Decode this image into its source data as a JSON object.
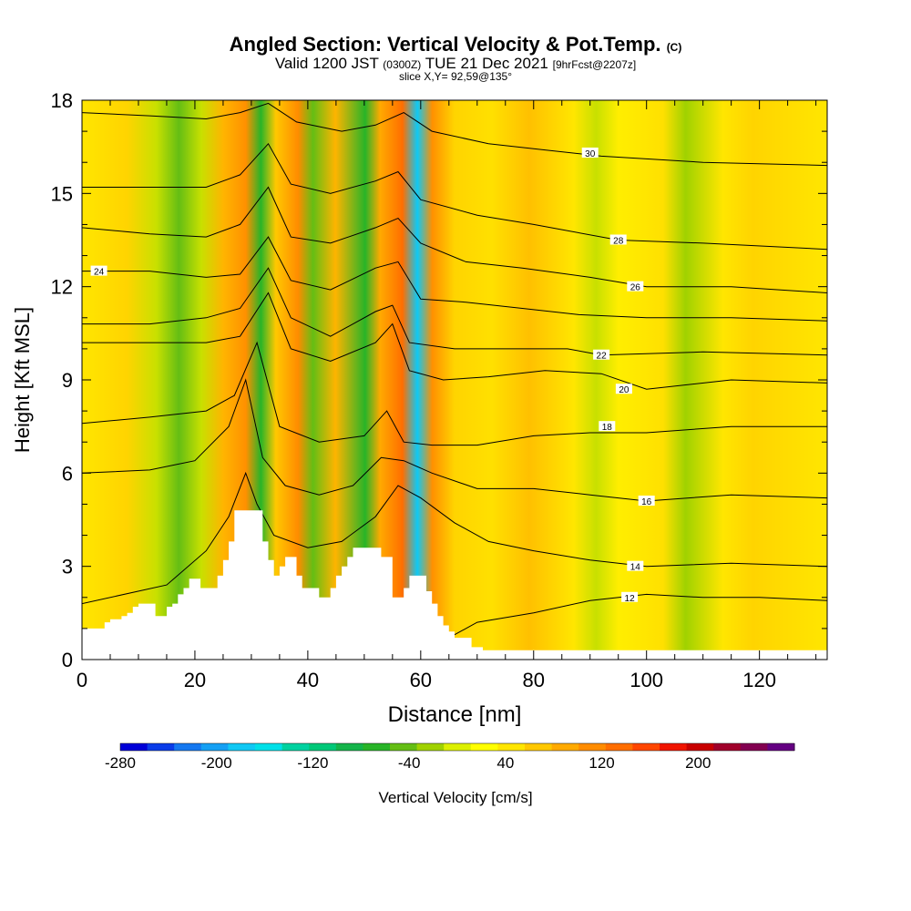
{
  "header": {
    "title": "Angled Section: Vertical Velocity & Pot.Temp.",
    "title_mark": "(C)",
    "valid_prefix": "Valid 1200 JST",
    "valid_z": "(0300Z)",
    "valid_date": "TUE 21 Dec 2021",
    "valid_fcst": "[9hrFcst@2207z]",
    "slice": "slice X,Y= 92,59@135°"
  },
  "colors": {
    "terrain": "#ffffff",
    "contour": "#000000",
    "background": "#ffffff"
  },
  "chart_data": {
    "type": "heatmap",
    "xlabel": "Distance [nm]",
    "ylabel": "Height [Kft MSL]",
    "xlim": [
      0,
      132
    ],
    "ylim": [
      0,
      18
    ],
    "xticks": [
      0,
      20,
      40,
      60,
      80,
      100,
      120
    ],
    "yticks": [
      0,
      3,
      6,
      9,
      12,
      15,
      18
    ],
    "colorbar": {
      "label": "Vertical Velocity [cm/s]",
      "min": -280,
      "max": 280,
      "ticks": [
        -280,
        -200,
        -120,
        -40,
        40,
        120,
        200
      ],
      "colors": [
        "#0000d8",
        "#0a3ce8",
        "#1478f0",
        "#14a0f4",
        "#10c8f4",
        "#00e0e8",
        "#00d2a0",
        "#00c878",
        "#14b44a",
        "#28b428",
        "#64be14",
        "#a0d200",
        "#dcf000",
        "#ffff00",
        "#ffe600",
        "#ffc800",
        "#ffaa00",
        "#ff8c00",
        "#ff6e00",
        "#ff4600",
        "#f01400",
        "#c80000",
        "#a0002a",
        "#820050",
        "#640082"
      ]
    },
    "terrain": [
      [
        0,
        1.0
      ],
      [
        4,
        1.0
      ],
      [
        4,
        1.2
      ],
      [
        5,
        1.2
      ],
      [
        5,
        1.3
      ],
      [
        7,
        1.3
      ],
      [
        7,
        1.4
      ],
      [
        8,
        1.4
      ],
      [
        8,
        1.5
      ],
      [
        9,
        1.5
      ],
      [
        9,
        1.7
      ],
      [
        10,
        1.7
      ],
      [
        10,
        1.8
      ],
      [
        13,
        1.8
      ],
      [
        13,
        1.4
      ],
      [
        15,
        1.4
      ],
      [
        15,
        1.7
      ],
      [
        16,
        1.7
      ],
      [
        16,
        1.8
      ],
      [
        17,
        1.8
      ],
      [
        17,
        2.1
      ],
      [
        18,
        2.1
      ],
      [
        18,
        2.3
      ],
      [
        19,
        2.3
      ],
      [
        19,
        2.6
      ],
      [
        21,
        2.6
      ],
      [
        21,
        2.3
      ],
      [
        24,
        2.3
      ],
      [
        24,
        2.7
      ],
      [
        25,
        2.7
      ],
      [
        25,
        3.2
      ],
      [
        26,
        3.2
      ],
      [
        26,
        3.8
      ],
      [
        27,
        3.8
      ],
      [
        27,
        4.8
      ],
      [
        32,
        4.8
      ],
      [
        32,
        3.8
      ],
      [
        33,
        3.8
      ],
      [
        33,
        3.2
      ],
      [
        34,
        3.2
      ],
      [
        34,
        2.7
      ],
      [
        35,
        2.7
      ],
      [
        35,
        3.0
      ],
      [
        36,
        3.0
      ],
      [
        36,
        3.3
      ],
      [
        38,
        3.3
      ],
      [
        38,
        2.7
      ],
      [
        39,
        2.7
      ],
      [
        39,
        2.3
      ],
      [
        42,
        2.3
      ],
      [
        42,
        2.0
      ],
      [
        44,
        2.0
      ],
      [
        44,
        2.3
      ],
      [
        45,
        2.3
      ],
      [
        45,
        2.7
      ],
      [
        46,
        2.7
      ],
      [
        46,
        3.0
      ],
      [
        47,
        3.0
      ],
      [
        47,
        3.3
      ],
      [
        48,
        3.3
      ],
      [
        48,
        3.6
      ],
      [
        53,
        3.6
      ],
      [
        53,
        3.3
      ],
      [
        55,
        3.3
      ],
      [
        55,
        2.0
      ],
      [
        57,
        2.0
      ],
      [
        57,
        2.3
      ],
      [
        58,
        2.3
      ],
      [
        58,
        2.7
      ],
      [
        61,
        2.7
      ],
      [
        61,
        2.2
      ],
      [
        62,
        2.2
      ],
      [
        62,
        1.8
      ],
      [
        63,
        1.8
      ],
      [
        63,
        1.4
      ],
      [
        64,
        1.4
      ],
      [
        64,
        1.1
      ],
      [
        65,
        1.1
      ],
      [
        65,
        0.9
      ],
      [
        66,
        0.9
      ],
      [
        66,
        0.7
      ],
      [
        69,
        0.7
      ],
      [
        69,
        0.4
      ],
      [
        71,
        0.4
      ],
      [
        71,
        0.3
      ],
      [
        132,
        0.3
      ],
      [
        132,
        0
      ],
      [
        0,
        0
      ]
    ],
    "contours": [
      {
        "level": 12,
        "label_at": [
          97,
          2.0
        ],
        "points": [
          [
            63,
            0.5
          ],
          [
            70,
            1.2
          ],
          [
            80,
            1.5
          ],
          [
            90,
            1.9
          ],
          [
            100,
            2.1
          ],
          [
            110,
            2.0
          ],
          [
            120,
            2.0
          ],
          [
            132,
            1.9
          ]
        ]
      },
      {
        "level": 14,
        "label_at": [
          98,
          3.0
        ],
        "points": [
          [
            0,
            1.8
          ],
          [
            15,
            2.4
          ],
          [
            22,
            3.5
          ],
          [
            26,
            4.6
          ],
          [
            29,
            6.0
          ],
          [
            31,
            5.0
          ],
          [
            34,
            4.0
          ],
          [
            40,
            3.6
          ],
          [
            46,
            3.8
          ],
          [
            52,
            4.6
          ],
          [
            56,
            5.6
          ],
          [
            60,
            5.2
          ],
          [
            66,
            4.4
          ],
          [
            72,
            3.8
          ],
          [
            80,
            3.5
          ],
          [
            90,
            3.2
          ],
          [
            100,
            3.0
          ],
          [
            115,
            3.1
          ],
          [
            132,
            3.0
          ]
        ]
      },
      {
        "level": 16,
        "label_at": [
          100,
          5.1
        ],
        "points": [
          [
            0,
            6.0
          ],
          [
            12,
            6.1
          ],
          [
            20,
            6.4
          ],
          [
            26,
            7.5
          ],
          [
            29,
            9.0
          ],
          [
            32,
            6.5
          ],
          [
            36,
            5.6
          ],
          [
            42,
            5.3
          ],
          [
            48,
            5.6
          ],
          [
            53,
            6.5
          ],
          [
            57,
            6.4
          ],
          [
            62,
            6.0
          ],
          [
            70,
            5.5
          ],
          [
            80,
            5.5
          ],
          [
            90,
            5.3
          ],
          [
            100,
            5.1
          ],
          [
            115,
            5.3
          ],
          [
            132,
            5.2
          ]
        ]
      },
      {
        "level": 18,
        "label_at": [
          93,
          7.5
        ],
        "points": [
          [
            0,
            7.6
          ],
          [
            12,
            7.8
          ],
          [
            22,
            8.0
          ],
          [
            27,
            8.5
          ],
          [
            31,
            10.2
          ],
          [
            35,
            7.5
          ],
          [
            42,
            7.0
          ],
          [
            50,
            7.2
          ],
          [
            54,
            8.0
          ],
          [
            57,
            7.0
          ],
          [
            62,
            6.9
          ],
          [
            70,
            6.9
          ],
          [
            80,
            7.2
          ],
          [
            90,
            7.3
          ],
          [
            100,
            7.3
          ],
          [
            115,
            7.5
          ],
          [
            132,
            7.5
          ]
        ]
      },
      {
        "level": 20,
        "label_at": [
          96,
          8.7
        ],
        "points": [
          [
            0,
            10.2
          ],
          [
            12,
            10.2
          ],
          [
            22,
            10.2
          ],
          [
            28,
            10.4
          ],
          [
            33,
            11.8
          ],
          [
            37,
            10.0
          ],
          [
            44,
            9.6
          ],
          [
            52,
            10.2
          ],
          [
            55,
            10.8
          ],
          [
            58,
            9.3
          ],
          [
            64,
            9.0
          ],
          [
            72,
            9.1
          ],
          [
            82,
            9.3
          ],
          [
            92,
            9.2
          ],
          [
            100,
            8.7
          ],
          [
            115,
            9.0
          ],
          [
            132,
            8.9
          ]
        ]
      },
      {
        "level": 22,
        "label_at": [
          92,
          9.8
        ],
        "points": [
          [
            0,
            10.8
          ],
          [
            12,
            10.8
          ],
          [
            22,
            11.0
          ],
          [
            28,
            11.3
          ],
          [
            33,
            12.6
          ],
          [
            37,
            11.0
          ],
          [
            44,
            10.4
          ],
          [
            52,
            11.2
          ],
          [
            55,
            11.4
          ],
          [
            58,
            10.2
          ],
          [
            66,
            10.0
          ],
          [
            76,
            10.0
          ],
          [
            86,
            10.0
          ],
          [
            92,
            9.8
          ],
          [
            110,
            9.9
          ],
          [
            132,
            9.8
          ]
        ]
      },
      {
        "level": 24,
        "label_at": [
          3,
          12.5
        ],
        "points": [
          [
            0,
            12.5
          ],
          [
            12,
            12.5
          ],
          [
            22,
            12.3
          ],
          [
            28,
            12.4
          ],
          [
            33,
            13.6
          ],
          [
            37,
            12.2
          ],
          [
            44,
            11.9
          ],
          [
            52,
            12.6
          ],
          [
            56,
            12.8
          ],
          [
            60,
            11.6
          ],
          [
            68,
            11.5
          ],
          [
            78,
            11.3
          ],
          [
            88,
            11.1
          ],
          [
            100,
            11.0
          ],
          [
            115,
            11.0
          ],
          [
            132,
            10.9
          ]
        ]
      },
      {
        "level": 26,
        "label_at": [
          98,
          12.0
        ],
        "points": [
          [
            0,
            13.9
          ],
          [
            12,
            13.7
          ],
          [
            22,
            13.6
          ],
          [
            28,
            14.0
          ],
          [
            33,
            15.2
          ],
          [
            37,
            13.6
          ],
          [
            44,
            13.4
          ],
          [
            52,
            13.9
          ],
          [
            56,
            14.2
          ],
          [
            60,
            13.4
          ],
          [
            68,
            12.8
          ],
          [
            78,
            12.6
          ],
          [
            90,
            12.3
          ],
          [
            100,
            12.0
          ],
          [
            115,
            12.0
          ],
          [
            132,
            11.8
          ]
        ]
      },
      {
        "level": 28,
        "label_at": [
          95,
          13.5
        ],
        "points": [
          [
            0,
            15.2
          ],
          [
            12,
            15.2
          ],
          [
            22,
            15.2
          ],
          [
            28,
            15.6
          ],
          [
            33,
            16.6
          ],
          [
            37,
            15.3
          ],
          [
            44,
            15.0
          ],
          [
            52,
            15.4
          ],
          [
            56,
            15.7
          ],
          [
            60,
            14.8
          ],
          [
            70,
            14.3
          ],
          [
            80,
            14.0
          ],
          [
            95,
            13.5
          ],
          [
            110,
            13.4
          ],
          [
            132,
            13.2
          ]
        ]
      },
      {
        "level": 30,
        "label_at": [
          90,
          16.3
        ],
        "points": [
          [
            0,
            17.6
          ],
          [
            12,
            17.5
          ],
          [
            22,
            17.4
          ],
          [
            28,
            17.6
          ],
          [
            33,
            17.9
          ],
          [
            38,
            17.3
          ],
          [
            46,
            17.0
          ],
          [
            52,
            17.2
          ],
          [
            57,
            17.6
          ],
          [
            62,
            17.0
          ],
          [
            72,
            16.6
          ],
          [
            82,
            16.4
          ],
          [
            92,
            16.2
          ],
          [
            110,
            16.0
          ],
          [
            132,
            15.9
          ]
        ]
      }
    ]
  },
  "annotations": {
    "contour_labels": [
      "12",
      "14",
      "16",
      "18",
      "20",
      "22",
      "24",
      "26",
      "28",
      "30"
    ]
  }
}
